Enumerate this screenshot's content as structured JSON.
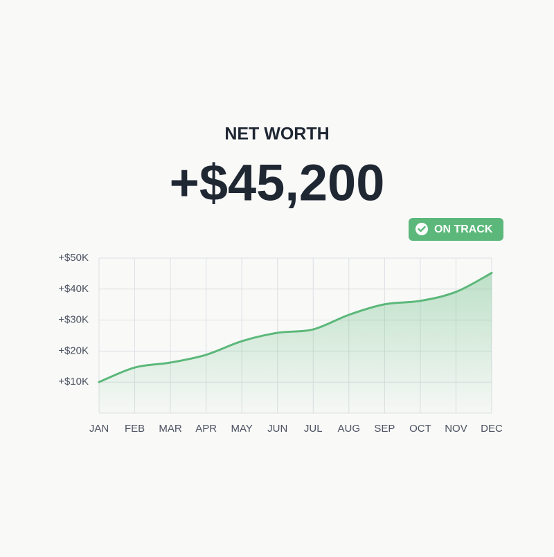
{
  "chart_data": {
    "type": "area",
    "title": "NET WORTH",
    "headline": "+$45,200",
    "badge": "ON TRACK",
    "categories": [
      "JAN",
      "FEB",
      "MAR",
      "APR",
      "MAY",
      "JUN",
      "JUL",
      "AUG",
      "SEP",
      "OCT",
      "NOV",
      "DEC"
    ],
    "values": [
      10000,
      14700,
      16300,
      18800,
      23200,
      25900,
      27000,
      31700,
      35100,
      36200,
      39100,
      45200
    ],
    "color": "#5cb87a",
    "ylim": [
      0,
      50000
    ],
    "yticks": [
      {
        "value": 10000,
        "label": "+$10K"
      },
      {
        "value": 20000,
        "label": "+$20K"
      },
      {
        "value": 30000,
        "label": "+$30K"
      },
      {
        "value": 40000,
        "label": "+$40K"
      },
      {
        "value": 50000,
        "label": "+$50K"
      }
    ],
    "grid": true
  }
}
